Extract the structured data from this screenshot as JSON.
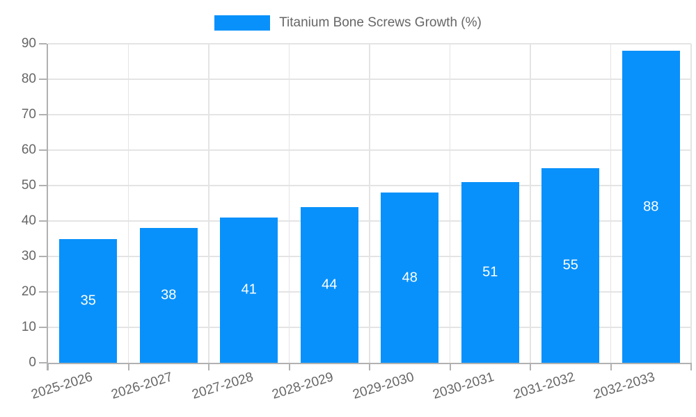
{
  "legend": {
    "label": "Titanium Bone Screws Growth (%)"
  },
  "colors": {
    "bar": "#0991fb",
    "grid": "#e4e4e4",
    "axis": "#b1b1b1",
    "tick_text": "#666666",
    "legend_text": "#666666",
    "data_label": "#ffffff",
    "background": "#ffffff"
  },
  "chart_data": {
    "type": "bar",
    "title": "",
    "xlabel": "",
    "ylabel": "",
    "legend_entries": [
      "Titanium Bone Screws Growth (%)"
    ],
    "legend_position": "top-center",
    "categories": [
      "2025-2026",
      "2026-2027",
      "2027-2028",
      "2028-2029",
      "2029-2030",
      "2030-2031",
      "2031-2032",
      "2032-2033"
    ],
    "values": [
      35,
      38,
      41,
      44,
      48,
      51,
      55,
      88
    ],
    "data_labels": [
      35,
      38,
      41,
      44,
      48,
      51,
      55,
      88
    ],
    "data_label_position": "inside-center",
    "ylim": [
      0,
      90
    ],
    "yticks": [
      0,
      10,
      20,
      30,
      40,
      50,
      60,
      70,
      80,
      90
    ],
    "grid": "horizontal-and-vertical",
    "x_label_rotation_deg": -17
  }
}
